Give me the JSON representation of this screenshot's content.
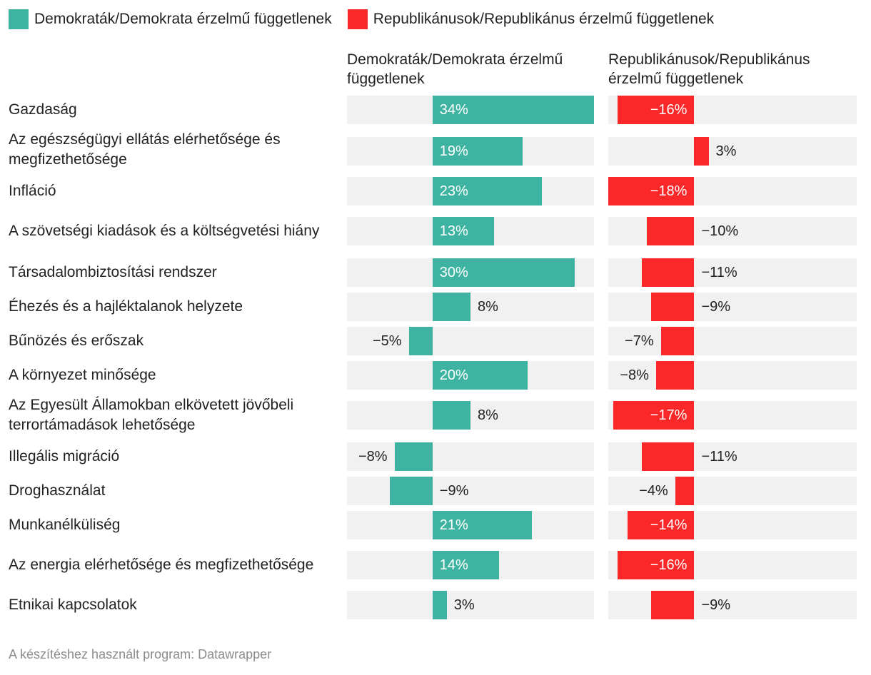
{
  "colors": {
    "dem": "#3fb3a1",
    "rep": "#fa2828",
    "track": "#f1f1f1"
  },
  "legend": [
    {
      "label": "Demokraták/Demokrata érzelmű függetlenek",
      "color": "#3fb3a1"
    },
    {
      "label": "Republikánusok/Republikánus érzelmű függetlenek",
      "color": "#fa2828"
    }
  ],
  "footer": "A készítéshez használt program: Datawrapper",
  "chart_data": {
    "type": "bar",
    "orientation": "horizontal",
    "categories": [
      "Gazdaság",
      "Az egészségügyi ellátás elérhetősége és megfizethetősége",
      "Infláció",
      "A szövetségi kiadások és a költségvetési hiány",
      "Társadalombiztosítási rendszer",
      "Éhezés és a hajléktalanok helyzete",
      "Bűnözés és erőszak",
      "A környezet minősége",
      "Az Egyesült Államokban elkövetett jövőbeli terrortámadások lehetősége",
      "Illegális migráció",
      "Droghasználat",
      "Munkanélküliség",
      "Az energia elérhetősége és megfizethetősége",
      "Etnikai kapcsolatok"
    ],
    "series": [
      {
        "name": "Demokraták/Demokrata érzelmű függetlenek",
        "values": [
          34,
          19,
          23,
          13,
          30,
          8,
          -5,
          20,
          8,
          -8,
          -9,
          21,
          14,
          3
        ],
        "labels": [
          "34%",
          "19%",
          "23%",
          "13%",
          "30%",
          "8%",
          "−5%",
          "20%",
          "8%",
          "−8%",
          "−9%",
          "21%",
          "14%",
          "3%"
        ],
        "xlim": [
          -18,
          34
        ]
      },
      {
        "name": "Republikánusok/Republikánus érzelmű függetlenek",
        "values": [
          -16,
          3,
          -18,
          -10,
          -11,
          -9,
          -7,
          -8,
          -17,
          -11,
          -4,
          -14,
          -16,
          -9
        ],
        "labels": [
          "−16%",
          "3%",
          "−18%",
          "−10%",
          "−11%",
          "−9%",
          "−7%",
          "−8%",
          "−17%",
          "−11%",
          "−4%",
          "−14%",
          "−16%",
          "−9%"
        ],
        "xlim": [
          -18,
          34
        ]
      }
    ],
    "legend_position": "top-left",
    "grid": false
  }
}
